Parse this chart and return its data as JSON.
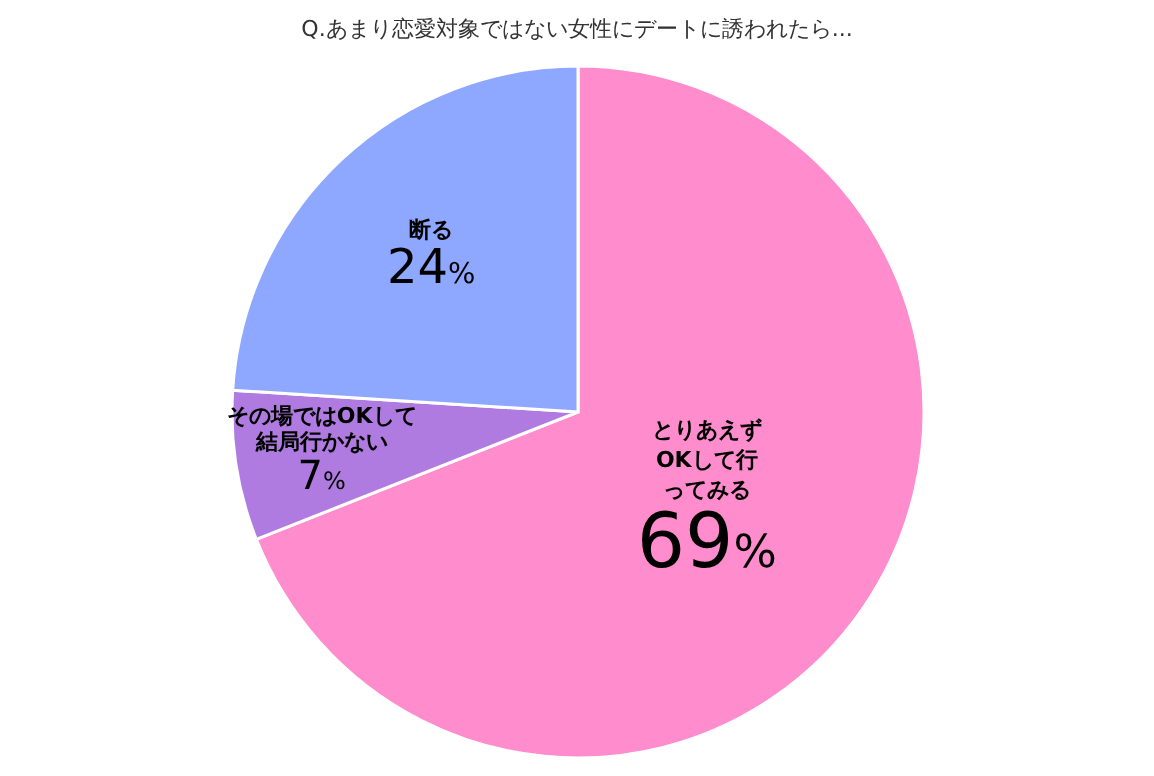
{
  "chart_data": {
    "type": "pie",
    "title": "Q.あまり恋愛対象ではない女性にデートに誘われたら...",
    "categories": [
      "とりあえずOKして行ってみる",
      "その場ではOKして結局行かない",
      "断る"
    ],
    "values": [
      69,
      7,
      24
    ],
    "colors": [
      "#ff8ccc",
      "#b07be0",
      "#8fa8ff"
    ],
    "value_labels": [
      "69%",
      "7%",
      "24%"
    ]
  }
}
